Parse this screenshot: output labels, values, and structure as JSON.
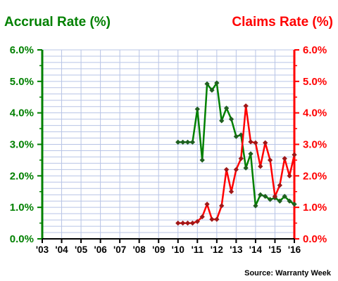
{
  "chart_data": {
    "type": "line",
    "left_axis_title": "Accrual Rate (%)",
    "right_axis_title": "Claims Rate (%)",
    "source": "Source: Warranty Week",
    "x_tick_labels": [
      "'03",
      "'04",
      "'05",
      "'06",
      "'07",
      "'08",
      "'09",
      "'10",
      "'11",
      "'12",
      "'13",
      "'14",
      "'15",
      "'16"
    ],
    "x_range": [
      2003,
      2016
    ],
    "y_left": {
      "range": [
        0,
        6
      ],
      "ticks": [
        "0.0%",
        "1.0%",
        "2.0%",
        "3.0%",
        "4.0%",
        "5.0%",
        "6.0%"
      ],
      "color": "#008000"
    },
    "y_right": {
      "range": [
        0,
        6
      ],
      "ticks": [
        "0.0%",
        "1.0%",
        "2.0%",
        "3.0%",
        "4.0%",
        "5.0%",
        "6.0%"
      ],
      "color": "#ff0000"
    },
    "grid": true,
    "series": [
      {
        "axis": "left",
        "color": "#008000",
        "marker_fill": "#206020",
        "x": [
          2010.0,
          2010.25,
          2010.5,
          2010.75,
          2011.0,
          2011.25,
          2011.5,
          2011.75,
          2012.0,
          2012.25,
          2012.5,
          2012.75,
          2013.0,
          2013.25,
          2013.5,
          2013.75,
          2014.0,
          2014.25,
          2014.5,
          2014.75,
          2015.0,
          2015.25,
          2015.5,
          2015.75,
          2016.0
        ],
        "values": [
          3.07,
          3.07,
          3.07,
          3.07,
          4.12,
          2.5,
          4.92,
          4.72,
          4.95,
          3.75,
          4.15,
          3.8,
          3.25,
          3.3,
          2.25,
          2.7,
          1.05,
          1.4,
          1.35,
          1.25,
          1.3,
          1.2,
          1.35,
          1.2,
          1.1
        ]
      },
      {
        "axis": "right",
        "color": "#ff0000",
        "marker_fill": "#a01818",
        "x": [
          2010.0,
          2010.25,
          2010.5,
          2010.75,
          2011.0,
          2011.25,
          2011.5,
          2011.75,
          2012.0,
          2012.25,
          2012.5,
          2012.75,
          2013.0,
          2013.25,
          2013.5,
          2013.75,
          2014.0,
          2014.25,
          2014.5,
          2014.75,
          2015.0,
          2015.25,
          2015.5,
          2015.75,
          2016.0
        ],
        "values": [
          0.5,
          0.5,
          0.5,
          0.5,
          0.55,
          0.7,
          1.1,
          0.62,
          0.62,
          1.05,
          2.2,
          1.5,
          2.2,
          2.55,
          4.22,
          3.08,
          3.05,
          2.3,
          3.05,
          2.5,
          1.35,
          1.7,
          2.55,
          2.0,
          2.67
        ]
      }
    ]
  }
}
